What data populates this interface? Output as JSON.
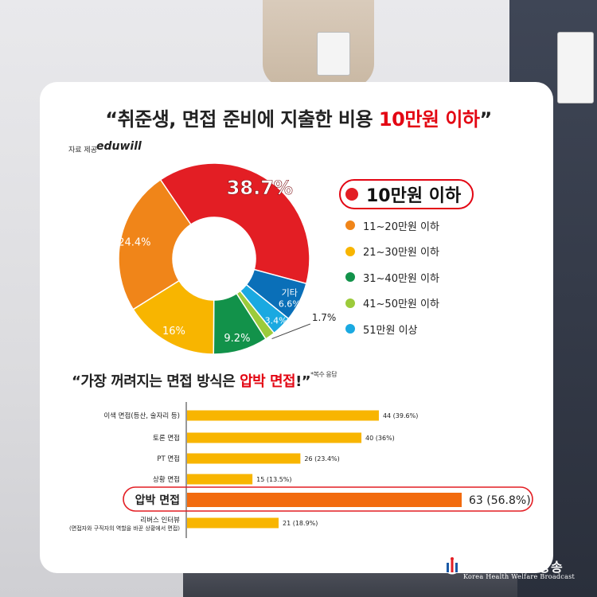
{
  "headline": {
    "quote_open": "“",
    "prefix": "취준생, 면접 준비에 지출한 비용 ",
    "highlight": "10만원 이하",
    "quote_close": "”"
  },
  "source": {
    "label": "자료 제공",
    "brand": "eduwill"
  },
  "chart_data": [
    {
      "type": "pie",
      "title": "“취준생, 면접 준비에 지출한 비용 10만원 이하”",
      "slices": [
        {
          "name": "10만원 이하",
          "value": 38.7,
          "label": "38.7%",
          "color": "#e31e24"
        },
        {
          "name": "11~20만원 이하",
          "value": 24.4,
          "label": "24.4%",
          "color": "#f08519"
        },
        {
          "name": "21~30만원 이하",
          "value": 16,
          "label": "16%",
          "color": "#f8b500"
        },
        {
          "name": "31~40만원 이하",
          "value": 9.2,
          "label": "9.2%",
          "color": "#12924a"
        },
        {
          "name": "41~50만원 이하",
          "value": 1.7,
          "label": "1.7%",
          "color": "#9ccb3b"
        },
        {
          "name": "51만원 이상",
          "value": 3.4,
          "label": "3.4%",
          "color": "#1aa9e1"
        },
        {
          "name": "기타",
          "value": 6.6,
          "label": "6.6%",
          "color": "#0a6fb8"
        }
      ],
      "legend": [
        {
          "label": "10만원 이하",
          "color": "#e31e24"
        },
        {
          "label": "11~20만원 이하",
          "color": "#f08519"
        },
        {
          "label": "21~30만원 이하",
          "color": "#f8b500"
        },
        {
          "label": "31~40만원 이하",
          "color": "#12924a"
        },
        {
          "label": "41~50만원 이하",
          "color": "#9ccb3b"
        },
        {
          "label": "51만원 이상",
          "color": "#1aa9e1"
        }
      ],
      "other_label": "기타"
    },
    {
      "type": "bar",
      "orientation": "horizontal",
      "title": "“가장 꺼려지는 면접 방식은 압박 면접!”",
      "categories": [
        "이색 면접(등산, 술자리 등)",
        "토론 면접",
        "PT 면접",
        "상황 면접",
        "압박 면접",
        "리버스 인터뷰"
      ],
      "category_notes": [
        "",
        "",
        "",
        "",
        "",
        "(면접자와 구직자의 역할을 바꾼 상황에서 면접)"
      ],
      "values": [
        44,
        40,
        26,
        15,
        63,
        21
      ],
      "value_labels": [
        "44 (39.6%)",
        "40 (36%)",
        "26 (23.4%)",
        "15 (13.5%)",
        "63 (56.8%)",
        "21 (18.9%)"
      ],
      "highlight_index": 4,
      "colors": {
        "normal": "#f8b500",
        "highlight": "#f26b0f"
      },
      "xlim": [
        0,
        63
      ]
    }
  ],
  "sub": {
    "quote_open": "“",
    "prefix": "가장 꺼려지는 면접 방식은 ",
    "highlight": "압박 면접",
    "suffix": "!”",
    "note": "*복수 응답"
  },
  "logo": {
    "title": "한국보건복지방송",
    "subtitle": "Korea Health Welfare Broadcast"
  }
}
